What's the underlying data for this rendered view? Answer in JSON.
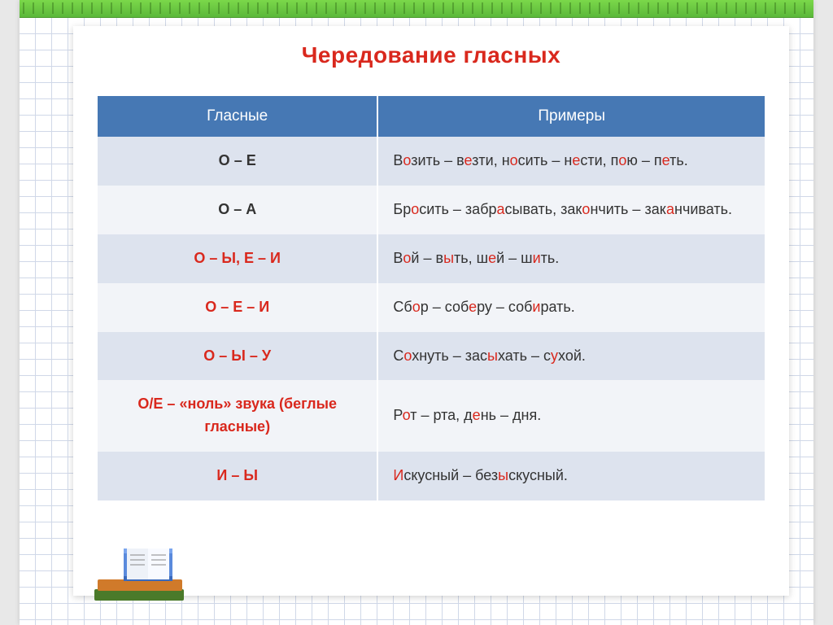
{
  "title": {
    "text": "Чередование гласных",
    "color": "#d9281d"
  },
  "theme": {
    "header_bg": "#4678b4",
    "row_odd_bg": "#dde3ee",
    "row_even_bg": "#f2f4f8",
    "highlight_color": "#d9281d",
    "binding_color": "#7bd84a",
    "grid_color": "#d0d8e8"
  },
  "table": {
    "col1_width": "42%",
    "col2_width": "58%",
    "headers": [
      "Гласные",
      "Примеры"
    ],
    "rows": [
      {
        "vowels_parts": [
          {
            "t": "О",
            "hl": false
          },
          {
            "t": " – ",
            "hl": false
          },
          {
            "t": "Е",
            "hl": false
          }
        ],
        "vowels_color": "#333",
        "example_parts": [
          {
            "t": "В",
            "hl": false
          },
          {
            "t": "о",
            "hl": true
          },
          {
            "t": "зить – в",
            "hl": false
          },
          {
            "t": "е",
            "hl": true
          },
          {
            "t": "зти, н",
            "hl": false
          },
          {
            "t": "о",
            "hl": true
          },
          {
            "t": "сить – н",
            "hl": false
          },
          {
            "t": "е",
            "hl": true
          },
          {
            "t": "сти, п",
            "hl": false
          },
          {
            "t": "о",
            "hl": true
          },
          {
            "t": "ю – п",
            "hl": false
          },
          {
            "t": "е",
            "hl": true
          },
          {
            "t": "ть.",
            "hl": false
          }
        ]
      },
      {
        "vowels_parts": [
          {
            "t": "О – А",
            "hl": false
          }
        ],
        "vowels_color": "#333",
        "example_parts": [
          {
            "t": "Бр",
            "hl": false
          },
          {
            "t": "о",
            "hl": true
          },
          {
            "t": "сить – забр",
            "hl": false
          },
          {
            "t": "а",
            "hl": true
          },
          {
            "t": "сывать, зак",
            "hl": false
          },
          {
            "t": "о",
            "hl": true
          },
          {
            "t": "нчить – зак",
            "hl": false
          },
          {
            "t": "а",
            "hl": true
          },
          {
            "t": "нчивать.",
            "hl": false
          }
        ]
      },
      {
        "vowels_parts": [
          {
            "t": "О – Ы, Е – И",
            "hl": true
          }
        ],
        "vowels_color": "#d9281d",
        "example_parts": [
          {
            "t": "В",
            "hl": false
          },
          {
            "t": "о",
            "hl": true
          },
          {
            "t": "й – в",
            "hl": false
          },
          {
            "t": "ы",
            "hl": true
          },
          {
            "t": "ть, ш",
            "hl": false
          },
          {
            "t": "е",
            "hl": true
          },
          {
            "t": "й – ш",
            "hl": false
          },
          {
            "t": "и",
            "hl": true
          },
          {
            "t": "ть.",
            "hl": false
          }
        ]
      },
      {
        "vowels_parts": [
          {
            "t": "О – Е – И",
            "hl": true
          }
        ],
        "vowels_color": "#d9281d",
        "example_parts": [
          {
            "t": "Сб",
            "hl": false
          },
          {
            "t": "о",
            "hl": true
          },
          {
            "t": "р – соб",
            "hl": false
          },
          {
            "t": "е",
            "hl": true
          },
          {
            "t": "ру – соб",
            "hl": false
          },
          {
            "t": "и",
            "hl": true
          },
          {
            "t": "рать.",
            "hl": false
          }
        ]
      },
      {
        "vowels_parts": [
          {
            "t": "О – Ы – У",
            "hl": true
          }
        ],
        "vowels_color": "#d9281d",
        "example_parts": [
          {
            "t": "С",
            "hl": false
          },
          {
            "t": "о",
            "hl": true
          },
          {
            "t": "хнуть – зас",
            "hl": false
          },
          {
            "t": "ы",
            "hl": true
          },
          {
            "t": "хать – с",
            "hl": false
          },
          {
            "t": "у",
            "hl": true
          },
          {
            "t": "хой.",
            "hl": false
          }
        ]
      },
      {
        "vowels_parts": [
          {
            "t": "О/Е – «ноль» звука (беглые гласные)",
            "hl": true
          }
        ],
        "vowels_color": "#d9281d",
        "example_parts": [
          {
            "t": "Р",
            "hl": false
          },
          {
            "t": "о",
            "hl": true
          },
          {
            "t": "т – рта, д",
            "hl": false
          },
          {
            "t": "е",
            "hl": true
          },
          {
            "t": "нь – дня.",
            "hl": false
          }
        ]
      },
      {
        "vowels_parts": [
          {
            "t": "И – Ы",
            "hl": true
          }
        ],
        "vowels_color": "#d9281d",
        "example_parts": [
          {
            "t": "И",
            "hl": true
          },
          {
            "t": "скусный – без",
            "hl": false
          },
          {
            "t": "ы",
            "hl": true
          },
          {
            "t": "скусный.",
            "hl": false
          }
        ]
      }
    ]
  }
}
